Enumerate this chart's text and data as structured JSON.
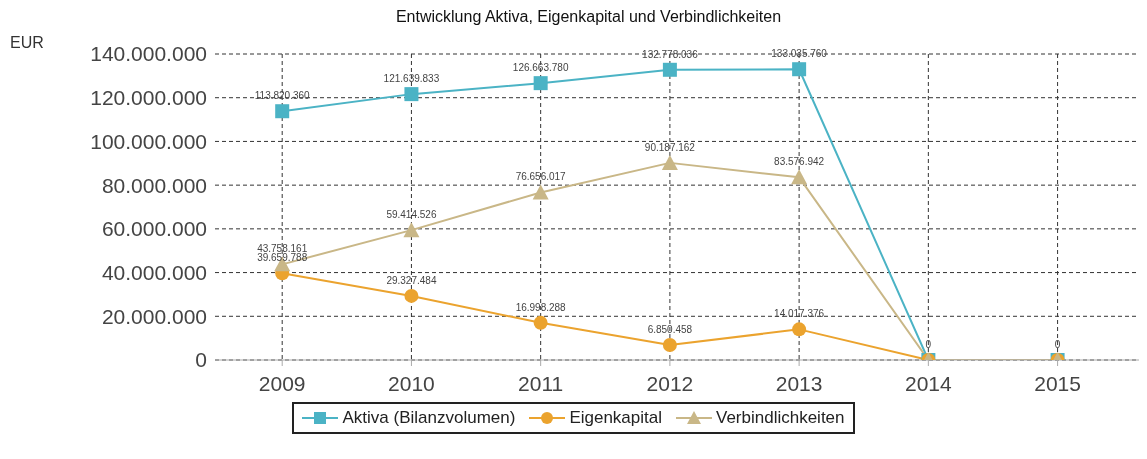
{
  "chart_data": {
    "type": "line",
    "title": "Entwicklung Aktiva, Eigenkapital und Verbindlichkeiten",
    "ylabel": "EUR",
    "categories": [
      "2009",
      "2010",
      "2011",
      "2012",
      "2013",
      "2014",
      "2015"
    ],
    "series": [
      {
        "name": "Aktiva (Bilanzvolumen)",
        "color": "#4bb3c5",
        "marker": "square",
        "values": [
          113820360,
          121639833,
          126663780,
          132778036,
          133035760,
          0,
          0
        ],
        "value_labels": [
          "113.820.360",
          "121.639.833",
          "126.663.780",
          "132.778.036",
          "133.035.760",
          "0",
          "0"
        ]
      },
      {
        "name": "Eigenkapital",
        "color": "#eba32e",
        "marker": "circle",
        "values": [
          39659788,
          29327484,
          16998288,
          6850458,
          14017376,
          0,
          0
        ],
        "value_labels": [
          "39.659.788",
          "29.327.484",
          "16.998.288",
          "6.850.458",
          "14.017.376",
          null,
          null
        ]
      },
      {
        "name": "Verbindlichkeiten",
        "color": "#c9b787",
        "marker": "triangle",
        "values": [
          43758161,
          59414526,
          76656017,
          90187162,
          83576942,
          0,
          0
        ],
        "value_labels": [
          "43.758.161",
          "59.414.526",
          "76.656.017",
          "90.187.162",
          "83.576.942",
          null,
          null
        ]
      }
    ],
    "ylim": [
      0,
      140000000
    ],
    "yticks": [
      0,
      {
        "value": 20000000,
        "label": "20.000.000"
      },
      {
        "value": 40000000,
        "label": "40.000.000"
      },
      {
        "value": 60000000,
        "label": "60.000.000"
      },
      {
        "value": 80000000,
        "label": "80.000.000"
      },
      {
        "value": 100000000,
        "label": "100.000.000"
      },
      {
        "value": 120000000,
        "label": "120.000.000"
      },
      {
        "value": 140000000,
        "label": "140.000.000"
      }
    ],
    "grid": true,
    "legend": "bottom"
  }
}
